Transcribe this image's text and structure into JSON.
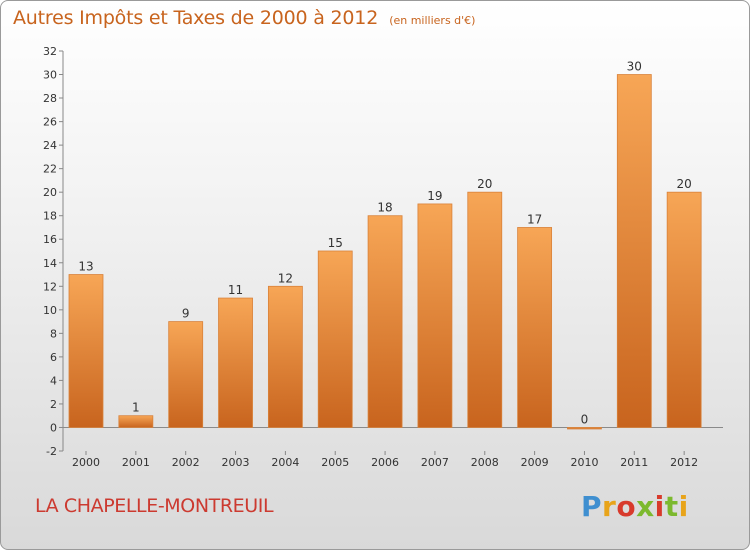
{
  "header": {
    "title": "Autres Impôts et Taxes de 2000 à 2012",
    "subtitle": "(en milliers d'€)"
  },
  "footer": {
    "commune": "LA CHAPELLE-MONTREUIL",
    "brand": "Proxiti"
  },
  "colors": {
    "bar_light": "#f7a656",
    "bar_dark": "#c8641e",
    "title": "#c8641e",
    "commune": "#cc3a30"
  },
  "chart_data": {
    "type": "bar",
    "categories": [
      "2000",
      "2001",
      "2002",
      "2003",
      "2004",
      "2005",
      "2006",
      "2007",
      "2008",
      "2009",
      "2010",
      "2011",
      "2012"
    ],
    "values": [
      13,
      1,
      9,
      11,
      12,
      15,
      18,
      19,
      20,
      17,
      0,
      30,
      20
    ],
    "data_labels": [
      "13",
      "1",
      "9",
      "11",
      "12",
      "15",
      "18",
      "19",
      "20",
      "17",
      "0",
      "30",
      "20"
    ],
    "ylim": [
      -2,
      32
    ],
    "yticks": [
      -2,
      0,
      2,
      4,
      6,
      8,
      10,
      12,
      14,
      16,
      18,
      20,
      22,
      24,
      26,
      28,
      30,
      32
    ],
    "grid": false
  }
}
